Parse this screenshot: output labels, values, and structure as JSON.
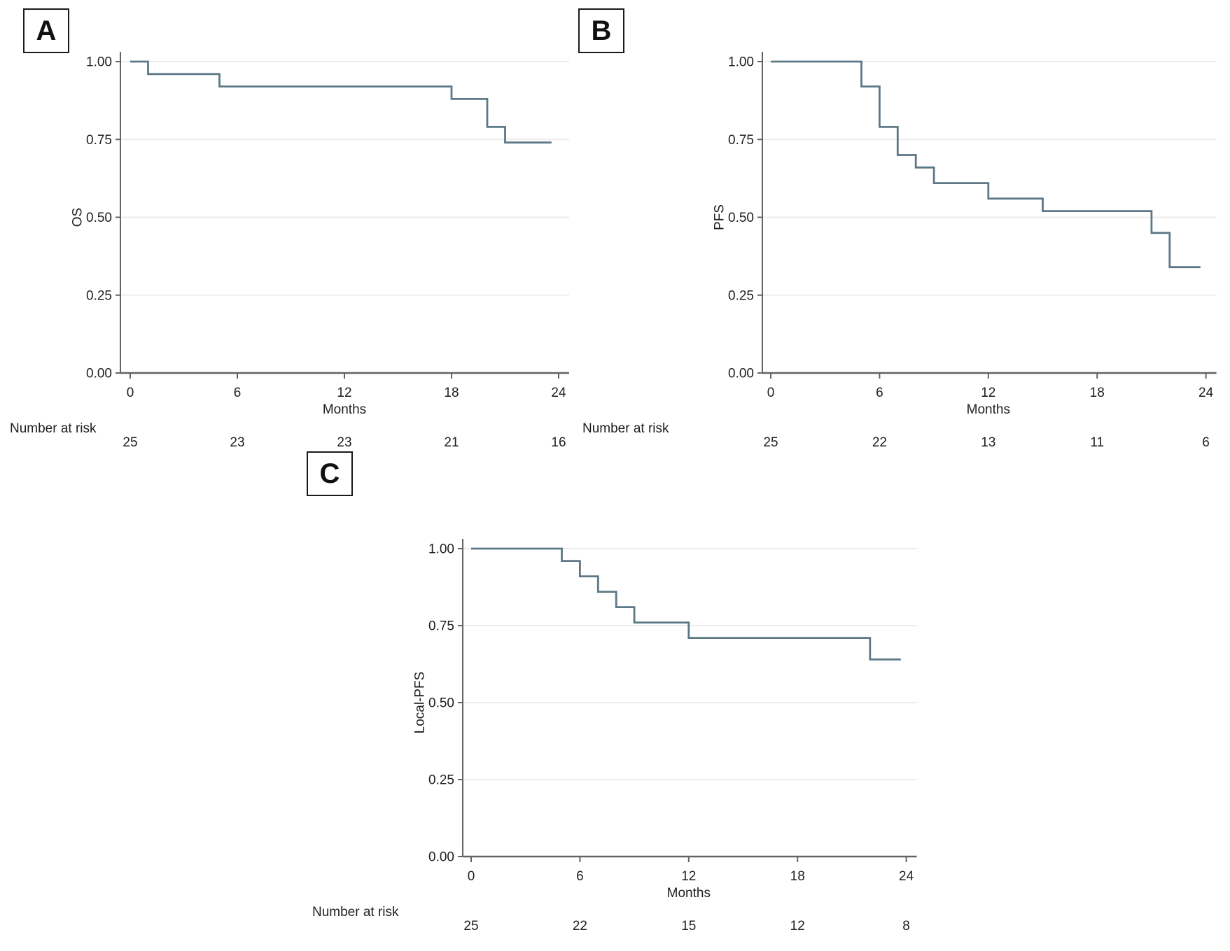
{
  "figure_title": "",
  "colors": {
    "background": "#ffffff",
    "curve": "#5d7886",
    "grid": "#f0ebeb",
    "axis": "#636363",
    "text": "#1f1f1f",
    "panel_box_border": "#1a1a1a"
  },
  "chart_data": [
    {
      "panel": "A",
      "type": "line",
      "subtype": "kaplan-meier-step",
      "ylabel": "OS",
      "xlabel": "Months",
      "xlim": [
        0,
        24
      ],
      "ylim": [
        0,
        1
      ],
      "xticks": [
        0,
        6,
        12,
        18,
        24
      ],
      "ytick_values": [
        0.0,
        0.25,
        0.5,
        0.75,
        1.0
      ],
      "ytick_labels": [
        "0.00",
        "0.25",
        "0.50",
        "0.75",
        "1.00"
      ],
      "grid": true,
      "legend": false,
      "steps": [
        [
          0,
          1.0
        ],
        [
          1,
          0.96
        ],
        [
          5,
          0.92
        ],
        [
          18,
          0.88
        ],
        [
          20,
          0.79
        ],
        [
          21,
          0.74
        ],
        [
          23.6,
          0.74
        ]
      ],
      "risk_table": {
        "label": "Number at risk",
        "months": [
          0,
          6,
          12,
          18,
          24
        ],
        "counts": [
          "25",
          "23",
          "23",
          "21",
          "16"
        ]
      }
    },
    {
      "panel": "B",
      "type": "line",
      "subtype": "kaplan-meier-step",
      "ylabel": "PFS",
      "xlabel": "Months",
      "xlim": [
        0,
        24
      ],
      "ylim": [
        0,
        1
      ],
      "xticks": [
        0,
        6,
        12,
        18,
        24
      ],
      "ytick_values": [
        0.0,
        0.25,
        0.5,
        0.75,
        1.0
      ],
      "ytick_labels": [
        "0.00",
        "0.25",
        "0.50",
        "0.75",
        "1.00"
      ],
      "grid": true,
      "legend": false,
      "steps": [
        [
          0,
          1.0
        ],
        [
          5,
          0.92
        ],
        [
          6,
          0.79
        ],
        [
          7,
          0.7
        ],
        [
          8,
          0.66
        ],
        [
          9,
          0.61
        ],
        [
          12,
          0.56
        ],
        [
          15,
          0.52
        ],
        [
          21,
          0.45
        ],
        [
          22,
          0.34
        ],
        [
          23.7,
          0.34
        ]
      ],
      "risk_table": {
        "label": "Number at risk",
        "months": [
          0,
          6,
          12,
          18,
          24
        ],
        "counts": [
          "25",
          "22",
          "13",
          "11",
          "6"
        ]
      }
    },
    {
      "panel": "C",
      "type": "line",
      "subtype": "kaplan-meier-step",
      "ylabel": "Local-PFS",
      "xlabel": "Months",
      "xlim": [
        0,
        24
      ],
      "ylim": [
        0,
        1
      ],
      "xticks": [
        0,
        6,
        12,
        18,
        24
      ],
      "ytick_values": [
        0.0,
        0.25,
        0.5,
        0.75,
        1.0
      ],
      "ytick_labels": [
        "0.00",
        "0.25",
        "0.50",
        "0.75",
        "1.00"
      ],
      "grid": true,
      "legend": false,
      "steps": [
        [
          0,
          1.0
        ],
        [
          5,
          0.96
        ],
        [
          6,
          0.91
        ],
        [
          7,
          0.86
        ],
        [
          8,
          0.81
        ],
        [
          9,
          0.76
        ],
        [
          12,
          0.71
        ],
        [
          22,
          0.64
        ],
        [
          23.7,
          0.64
        ]
      ],
      "risk_table": {
        "label": "Number at risk",
        "months": [
          0,
          6,
          12,
          18,
          24
        ],
        "counts": [
          "25",
          "22",
          "15",
          "12",
          "8"
        ]
      }
    }
  ]
}
